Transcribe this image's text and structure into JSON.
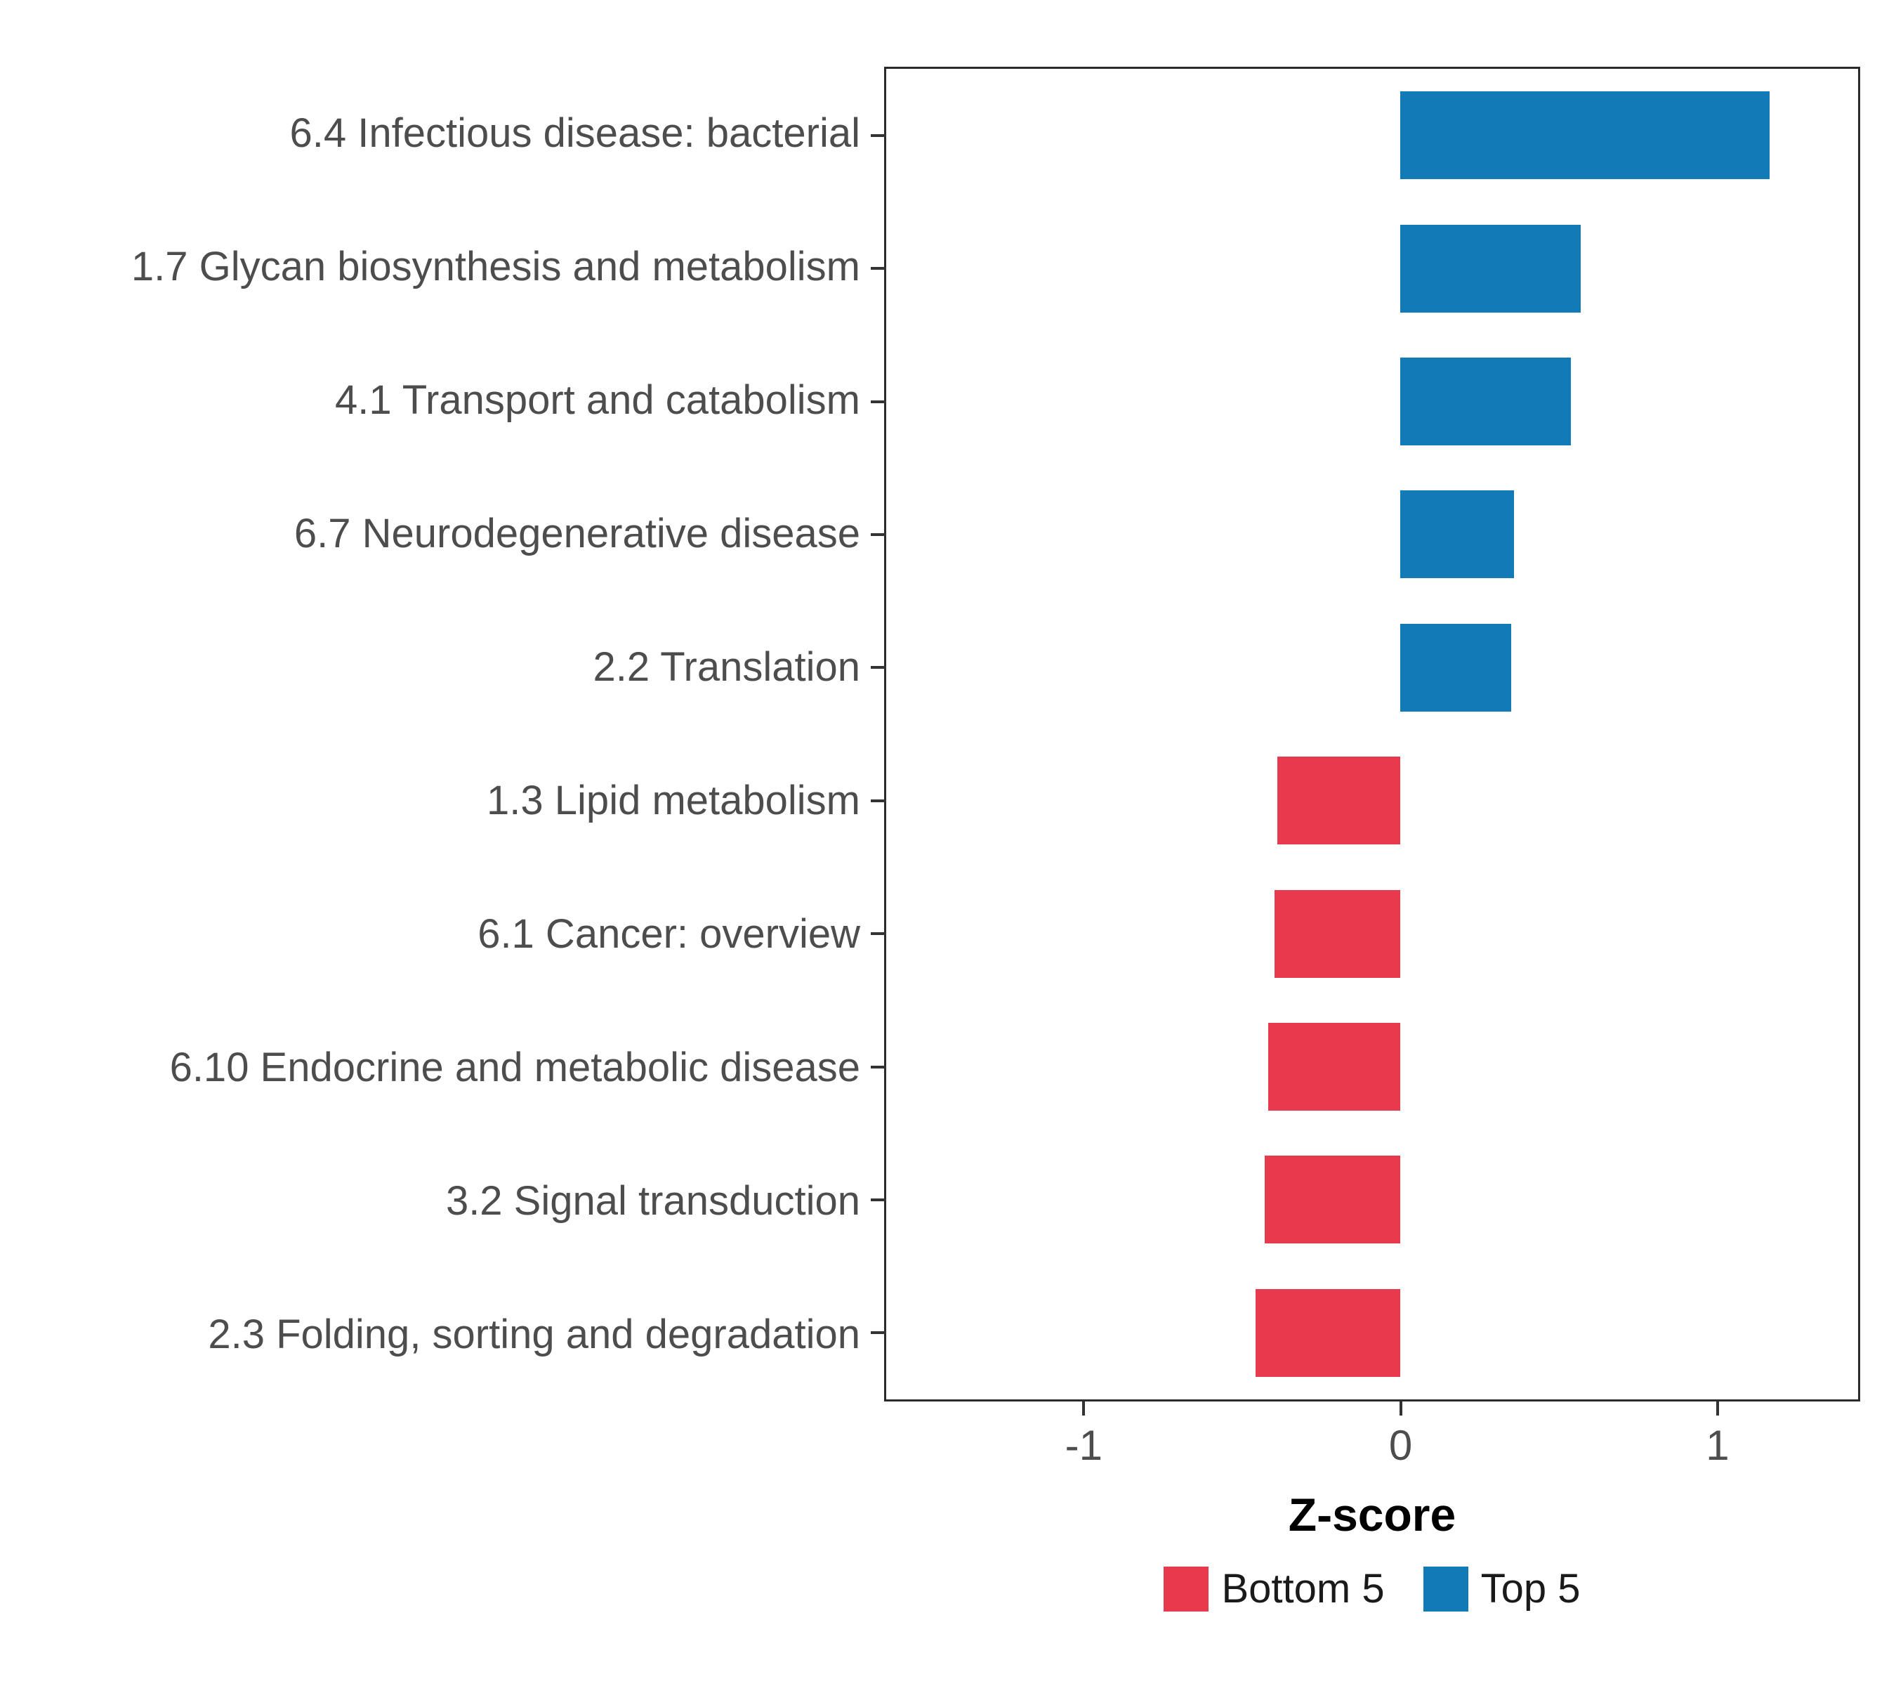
{
  "chart_data": {
    "type": "bar",
    "orientation": "horizontal",
    "title": "",
    "xlabel": "Z-score",
    "ylabel": "",
    "xlim": [
      -1.63,
      1.45
    ],
    "x_ticks": [
      -1,
      0,
      1
    ],
    "grid": false,
    "legend_position": "bottom",
    "categories": [
      "6.4 Infectious disease: bacterial",
      "1.7 Glycan biosynthesis and metabolism",
      "4.1 Transport and catabolism",
      "6.7 Neurodegenerative disease",
      "2.2 Translation",
      "1.3 Lipid metabolism",
      "6.1 Cancer: overview",
      "6.10 Endocrine and metabolic disease",
      "3.2 Signal transduction",
      "2.3 Folding, sorting and degradation"
    ],
    "values": [
      1.17,
      0.57,
      0.54,
      0.36,
      0.35,
      -0.39,
      -0.4,
      -0.42,
      -0.43,
      -0.46
    ],
    "groups": [
      "Top 5",
      "Top 5",
      "Top 5",
      "Top 5",
      "Top 5",
      "Bottom 5",
      "Bottom 5",
      "Bottom 5",
      "Bottom 5",
      "Bottom 5"
    ],
    "colors": {
      "top5": "#137AB8",
      "bottom5": "#E83A4D"
    },
    "legend": [
      {
        "label": "Bottom 5",
        "color": "#E83A4D"
      },
      {
        "label": "Top 5",
        "color": "#137AB8"
      }
    ]
  }
}
